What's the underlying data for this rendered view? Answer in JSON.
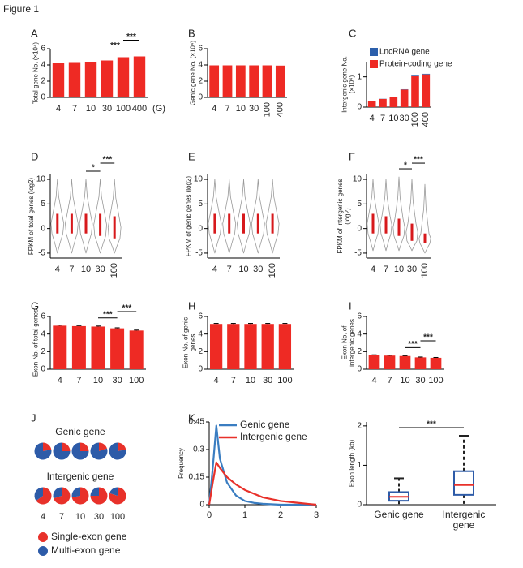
{
  "title": "Figure 1",
  "chart_data": [
    {
      "panel": "A",
      "type": "bar",
      "ylabel": "Total gene No. (×10⁴)",
      "categories": [
        "4",
        "7",
        "10",
        "30",
        "100",
        "400"
      ],
      "x_unit": "(G)",
      "series": [
        {
          "color": "#ee2a24",
          "values": [
            4.2,
            4.25,
            4.3,
            4.55,
            4.95,
            5.05
          ]
        }
      ],
      "ylim": [
        0,
        6
      ],
      "yticks": [
        0,
        2,
        4,
        6
      ],
      "significance": [
        {
          "between": [
            "30",
            "100"
          ],
          "label": "***"
        },
        {
          "between": [
            "100",
            "400"
          ],
          "label": "***"
        }
      ]
    },
    {
      "panel": "B",
      "type": "bar",
      "ylabel": "Genic gene No. (×10⁴)",
      "categories": [
        "4",
        "7",
        "10",
        "30",
        "100",
        "400"
      ],
      "series": [
        {
          "color": "#ee2a24",
          "values": [
            3.95,
            3.95,
            3.95,
            3.95,
            3.95,
            3.92
          ]
        }
      ],
      "ylim": [
        0,
        6
      ],
      "yticks": [
        0,
        2,
        4,
        6
      ]
    },
    {
      "panel": "C",
      "type": "bar",
      "ylabel": [
        "Intergenic gene No.",
        "(×10⁴)"
      ],
      "categories": [
        "4",
        "7",
        "10",
        "30",
        "100",
        "400"
      ],
      "series": [
        {
          "name": "Protein-coding gene",
          "color": "#ee2a24",
          "values": [
            0.2,
            0.27,
            0.33,
            0.58,
            1.02,
            1.08
          ]
        },
        {
          "name": "LncRNA gene",
          "color": "#2b5fab",
          "values": [
            0.005,
            0.006,
            0.007,
            0.01,
            0.02,
            0.02
          ]
        }
      ],
      "ylim": [
        0,
        1.5
      ],
      "yticks": [
        0,
        1
      ],
      "legend": "top-left"
    },
    {
      "panel": "D",
      "type": "violin",
      "ylabel": "FPKM of total genes (log2)",
      "categories": [
        "4",
        "7",
        "10",
        "30",
        "100"
      ],
      "violins": [
        {
          "min": -5,
          "max": 10,
          "q1": -1,
          "q3": 3
        },
        {
          "min": -5,
          "max": 10,
          "q1": -1,
          "q3": 3
        },
        {
          "min": -5,
          "max": 10,
          "q1": -1,
          "q3": 3
        },
        {
          "min": -5,
          "max": 10,
          "q1": -1.5,
          "q3": 3
        },
        {
          "min": -5,
          "max": 10,
          "q1": -2,
          "q3": 2.5
        }
      ],
      "ylim": [
        -6,
        11
      ],
      "yticks": [
        -5,
        0,
        5,
        10
      ],
      "significance": [
        {
          "between": [
            "10",
            "30"
          ],
          "label": "*"
        },
        {
          "between": [
            "30",
            "100"
          ],
          "label": "***"
        }
      ]
    },
    {
      "panel": "E",
      "type": "violin",
      "ylabel": "FPKM of genic genes (log2)",
      "categories": [
        "4",
        "7",
        "10",
        "30",
        "100"
      ],
      "violins": [
        {
          "min": -5,
          "max": 10,
          "q1": -1,
          "q3": 3
        },
        {
          "min": -5,
          "max": 10,
          "q1": -1,
          "q3": 3
        },
        {
          "min": -5,
          "max": 10,
          "q1": -1,
          "q3": 3
        },
        {
          "min": -5,
          "max": 10,
          "q1": -1,
          "q3": 3
        },
        {
          "min": -5,
          "max": 10,
          "q1": -1,
          "q3": 3
        }
      ],
      "ylim": [
        -6,
        11
      ],
      "yticks": [
        -5,
        0,
        5,
        10
      ]
    },
    {
      "panel": "F",
      "type": "violin",
      "ylabel": [
        "FPKM of intergenic genes",
        "(log2)"
      ],
      "categories": [
        "4",
        "7",
        "10",
        "30",
        "100"
      ],
      "violins": [
        {
          "min": -4.5,
          "max": 10,
          "q1": -1,
          "q3": 3
        },
        {
          "min": -4.5,
          "max": 10,
          "q1": -1,
          "q3": 2.5
        },
        {
          "min": -4.5,
          "max": 10.5,
          "q1": -1.5,
          "q3": 2
        },
        {
          "min": -4.5,
          "max": 10,
          "q1": -2.5,
          "q3": 1
        },
        {
          "min": -5,
          "max": 9,
          "q1": -3,
          "q3": -1
        }
      ],
      "ylim": [
        -6,
        11
      ],
      "yticks": [
        -5,
        0,
        5,
        10
      ],
      "significance": [
        {
          "between": [
            "10",
            "30"
          ],
          "label": "*"
        },
        {
          "between": [
            "30",
            "100"
          ],
          "label": "***"
        }
      ]
    },
    {
      "panel": "G",
      "type": "bar",
      "ylabel": "Exon No. of total genes",
      "categories": [
        "4",
        "7",
        "10",
        "30",
        "100"
      ],
      "series": [
        {
          "color": "#ee2a24",
          "values": [
            4.95,
            4.9,
            4.85,
            4.65,
            4.4
          ],
          "errors": [
            0.06,
            0.06,
            0.06,
            0.06,
            0.05
          ]
        }
      ],
      "ylim": [
        0,
        6
      ],
      "yticks": [
        0,
        2,
        4,
        6
      ],
      "significance": [
        {
          "between": [
            "10",
            "30"
          ],
          "label": "***"
        },
        {
          "between": [
            "30",
            "100"
          ],
          "label": "***"
        }
      ]
    },
    {
      "panel": "H",
      "type": "bar",
      "ylabel": [
        "Exon No. of genic",
        "genes"
      ],
      "categories": [
        "4",
        "7",
        "10",
        "30",
        "100"
      ],
      "series": [
        {
          "color": "#ee2a24",
          "values": [
            5.15,
            5.15,
            5.15,
            5.15,
            5.15
          ],
          "errors": [
            0.06,
            0.06,
            0.06,
            0.06,
            0.06
          ]
        }
      ],
      "ylim": [
        0,
        6
      ],
      "yticks": [
        0,
        2,
        4,
        6
      ]
    },
    {
      "panel": "I",
      "type": "bar",
      "ylabel": [
        "Exon No. of",
        "intergenic genes"
      ],
      "categories": [
        "4",
        "7",
        "10",
        "30",
        "100"
      ],
      "series": [
        {
          "color": "#ee2a24",
          "values": [
            1.6,
            1.55,
            1.5,
            1.35,
            1.3
          ],
          "errors": [
            0.04,
            0.04,
            0.04,
            0.04,
            0.04
          ]
        }
      ],
      "ylim": [
        0,
        6
      ],
      "yticks": [
        0,
        2,
        4,
        6
      ],
      "significance": [
        {
          "between": [
            "10",
            "30"
          ],
          "label": "***"
        },
        {
          "between": [
            "30",
            "100"
          ],
          "label": "***"
        }
      ]
    },
    {
      "panel": "J",
      "type": "pie",
      "categories": [
        "4",
        "7",
        "10",
        "30",
        "100"
      ],
      "legend": [
        {
          "name": "Single-exon gene",
          "color": "#e8312a"
        },
        {
          "name": "Multi-exon gene",
          "color": "#2d5ba8"
        }
      ],
      "rows": [
        {
          "title": "Genic gene",
          "values": [
            [
              22,
              78
            ],
            [
              25,
              75
            ],
            [
              25,
              75
            ],
            [
              20,
              80
            ],
            [
              22,
              78
            ]
          ]
        },
        {
          "title": "Intergenic gene",
          "values": [
            [
              65,
              35
            ],
            [
              70,
              30
            ],
            [
              72,
              28
            ],
            [
              75,
              25
            ],
            [
              80,
              20
            ]
          ]
        }
      ]
    },
    {
      "panel": "K",
      "type": "line",
      "ylabel": "Frequency",
      "x": [
        0,
        0.1,
        0.2,
        0.3,
        0.5,
        0.75,
        1,
        1.25,
        1.5,
        2,
        2.5,
        3
      ],
      "series": [
        {
          "name": "Genic gene",
          "color": "#3a7dc1",
          "values": [
            0,
            0.2,
            0.43,
            0.25,
            0.12,
            0.05,
            0.02,
            0.01,
            0.005,
            0,
            0,
            0
          ]
        },
        {
          "name": "Intergenic gene",
          "color": "#e8312a",
          "values": [
            0,
            0.12,
            0.23,
            0.2,
            0.15,
            0.11,
            0.08,
            0.06,
            0.04,
            0.02,
            0.01,
            0
          ]
        }
      ],
      "xlim": [
        0,
        3
      ],
      "xticks": [
        0,
        1,
        2,
        3
      ],
      "ylim": [
        0,
        0.45
      ],
      "yticks": [
        0,
        0.15,
        0.3,
        0.45
      ]
    },
    {
      "type": "box",
      "ylabel": "Exon length (kb)",
      "categories": [
        "Genic gene",
        "Intergenic gene"
      ],
      "boxes": [
        {
          "min": 0,
          "q1": 0.1,
          "median": 0.2,
          "q3": 0.32,
          "max": 0.67
        },
        {
          "min": 0,
          "q1": 0.25,
          "median": 0.5,
          "q3": 0.85,
          "max": 1.75
        }
      ],
      "ylim": [
        0,
        2.1
      ],
      "yticks": [
        0,
        1,
        2
      ],
      "significance": [
        {
          "between": [
            "Genic gene",
            "Intergenic gene"
          ],
          "label": "***"
        }
      ]
    }
  ]
}
